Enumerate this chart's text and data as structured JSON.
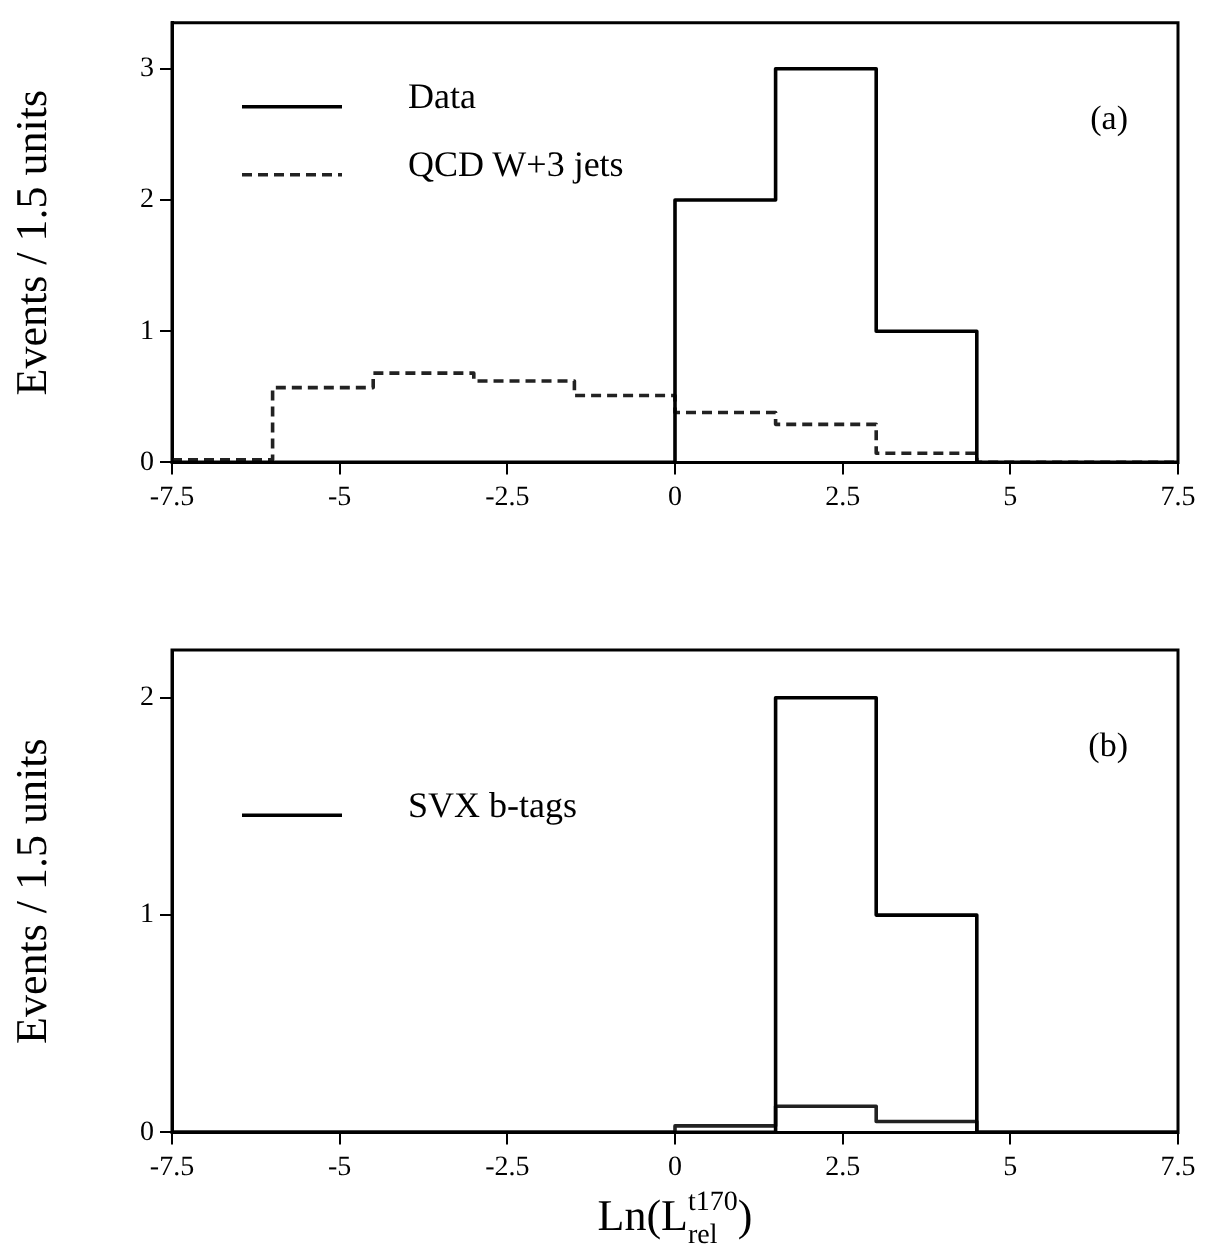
{
  "chart_data": [
    {
      "type": "histogram",
      "ylabel": "Events / 1.5 units",
      "annotations": [
        "(a)"
      ],
      "bins": [
        -7.5,
        -6,
        -4.5,
        -3,
        -1.5,
        0,
        1.5,
        3,
        4.5,
        6,
        7.5
      ],
      "series": [
        {
          "name": "Data",
          "color": "#000000",
          "line_style": "solid",
          "values": [
            0,
            0,
            0,
            0,
            0,
            2,
            3,
            1,
            0,
            0
          ]
        },
        {
          "name": "QCD W+3 jets",
          "color": "#222222",
          "line_style": "dashed",
          "values": [
            0.02,
            0.57,
            0.68,
            0.62,
            0.51,
            0.38,
            0.29,
            0.07,
            0,
            0
          ]
        }
      ],
      "xlim": [
        -7.5,
        7.5
      ],
      "xticks": [
        -7.5,
        -5,
        -2.5,
        0,
        2.5,
        5,
        7.5
      ],
      "ylim": [
        0,
        3.35
      ],
      "yticks": [
        0,
        1,
        2,
        3
      ],
      "grid": false,
      "legend": "top left"
    },
    {
      "type": "histogram",
      "ylabel": "Events / 1.5 units",
      "xlabel": "Ln(L$_{rel}$$^{t170}$)",
      "annotations": [
        "(b)"
      ],
      "bins": [
        -7.5,
        -6,
        -4.5,
        -3,
        -1.5,
        0,
        1.5,
        3,
        4.5,
        6,
        7.5
      ],
      "series": [
        {
          "name": "SVX b-tags",
          "color": "#000000",
          "line_style": "solid",
          "values": [
            0,
            0,
            0,
            0,
            0,
            0,
            2,
            1,
            0,
            0
          ]
        },
        {
          "color": "#222222",
          "line_style": "solid",
          "values": [
            0,
            0,
            0,
            0,
            0,
            0.03,
            0.12,
            0.05,
            0,
            0
          ]
        }
      ],
      "xlim": [
        -7.5,
        7.5
      ],
      "xticks": [
        -7.5,
        -5,
        -2.5,
        0,
        2.5,
        5,
        7.5
      ],
      "ylim": [
        0,
        2.22
      ],
      "yticks": [
        0,
        1,
        2
      ],
      "grid": false,
      "legend": "left"
    }
  ]
}
